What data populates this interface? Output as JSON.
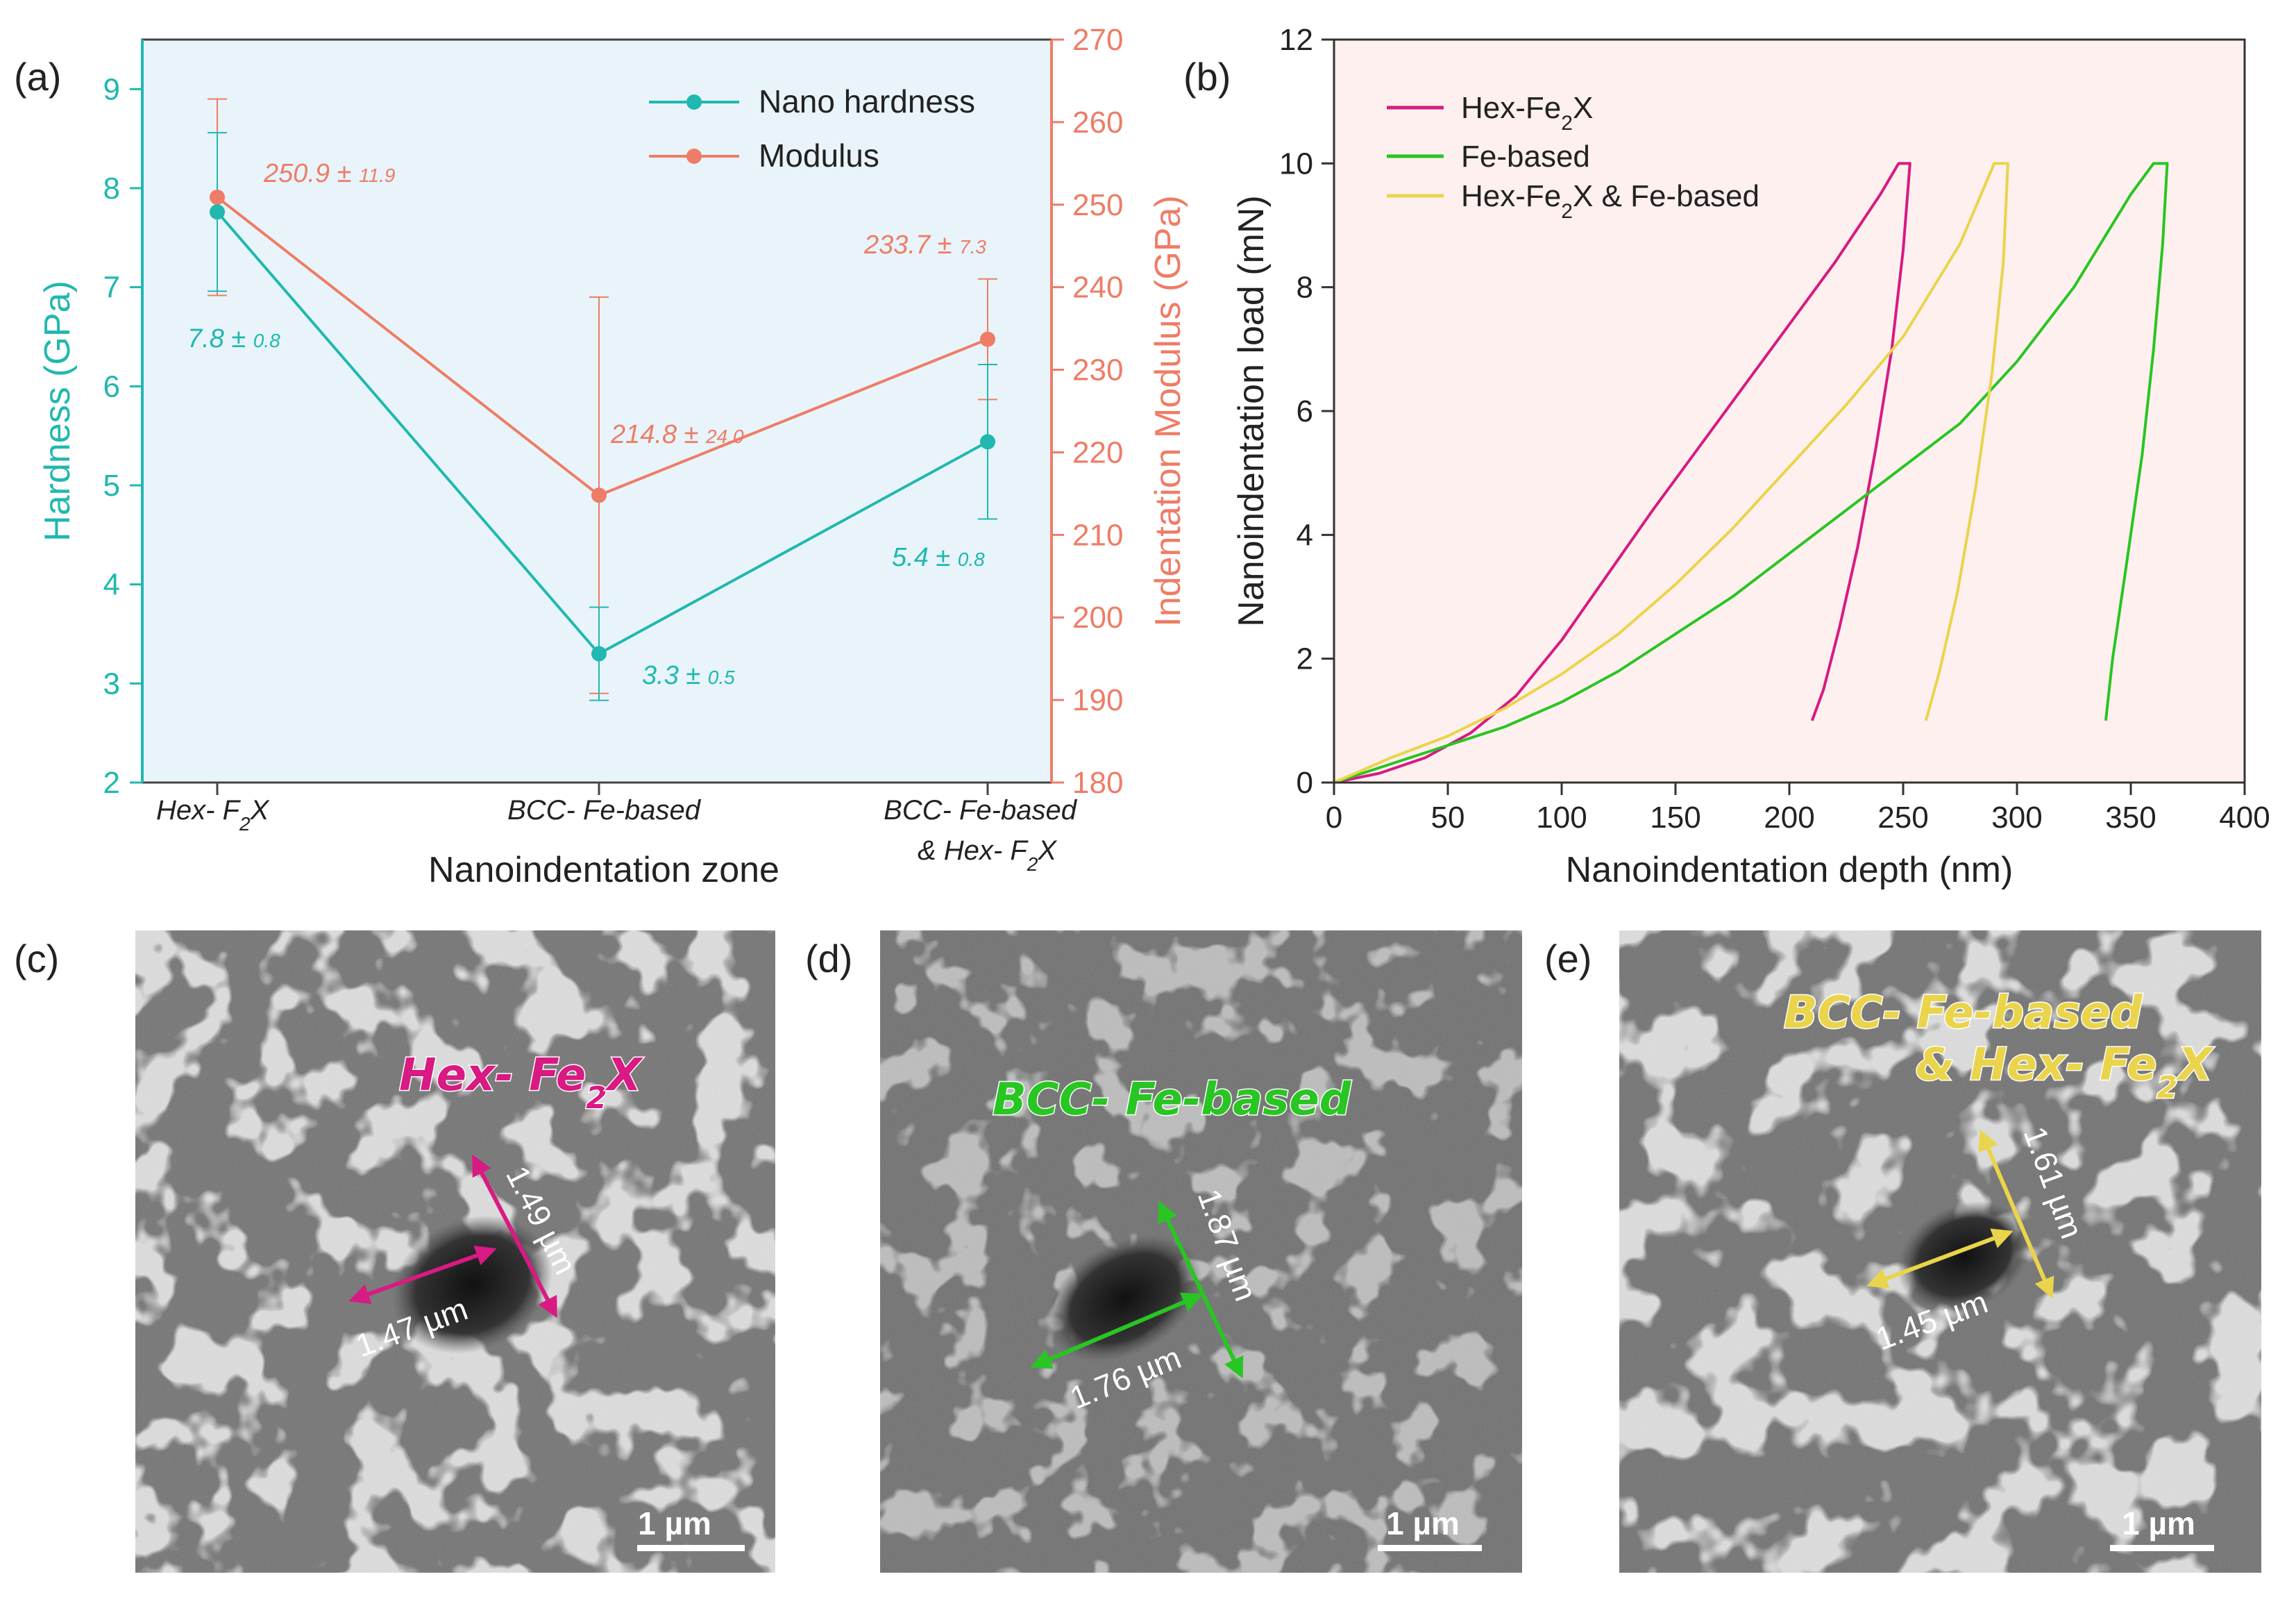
{
  "panels": {
    "a": "(a)",
    "b": "(b)",
    "c": "(c)",
    "d": "(d)",
    "e": "(e)"
  },
  "colors": {
    "hardness": "#20b8b0",
    "modulus": "#ef7c66",
    "hex": "#d81a83",
    "fe": "#29c523",
    "mix": "#ead44b",
    "bgA": "#e8f4fa",
    "bgB": "#fdf0ee"
  },
  "chart_data": [
    {
      "type": "line",
      "panel": "a",
      "categories": [
        "Hex- F2X",
        "BCC- Fe-based",
        "BCC- Fe-based & Hex- F2X"
      ],
      "category_labels": [
        {
          "line1_pre": "Hex- F",
          "line1_sub": "2",
          "line1_post": "X"
        },
        {
          "line1_pre": "BCC- Fe-based",
          "line1_sub": "",
          "line1_post": ""
        },
        {
          "line1_pre": "BCC- Fe-based",
          "line2_pre": "& Hex- F",
          "line2_sub": "2",
          "line2_post": "X"
        }
      ],
      "series": [
        {
          "name": "Nano hardness",
          "axis": "left",
          "values": [
            7.76,
            3.3,
            5.44
          ],
          "errors": [
            0.8,
            0.47,
            0.78
          ],
          "labels": [
            {
              "main": "7.8 ± ",
              "err": "0.8"
            },
            {
              "main": "3.3 ± ",
              "err": "0.5"
            },
            {
              "main": "5.4 ± ",
              "err": "0.8"
            }
          ]
        },
        {
          "name": "Modulus",
          "axis": "right",
          "values": [
            250.9,
            214.8,
            233.7
          ],
          "errors": [
            11.9,
            24.0,
            7.3
          ],
          "labels": [
            {
              "main": "250.9 ± ",
              "err": "11.9"
            },
            {
              "main": "214.8 ± ",
              "err": "24.0"
            },
            {
              "main": "233.7 ± ",
              "err": "7.3"
            }
          ]
        }
      ],
      "xlabel": "Nanoindentation zone",
      "ylabel": "Hardness (GPa)",
      "ylabel_right": "Indentation Modulus (GPa)",
      "ylim": [
        2,
        9.5
      ],
      "ylim_right": [
        180,
        270
      ],
      "yticks": [
        2,
        3,
        4,
        5,
        6,
        7,
        8,
        9
      ],
      "yticks_right": [
        180,
        190,
        200,
        210,
        220,
        230,
        240,
        250,
        260,
        270
      ],
      "legend": "top-right"
    },
    {
      "type": "line",
      "panel": "b",
      "xlabel": "Nanoindentation depth (nm)",
      "ylabel": "Nanoindentation load (mN)",
      "xlim": [
        0,
        400
      ],
      "ylim": [
        0,
        12
      ],
      "xticks": [
        0,
        50,
        100,
        150,
        200,
        250,
        300,
        350,
        400
      ],
      "yticks": [
        0,
        2,
        4,
        6,
        8,
        10,
        12
      ],
      "legend": "top-left",
      "series": [
        {
          "name": "Hex-Fe2X",
          "legend": {
            "pre": "Hex-Fe",
            "sub": "2",
            "post": "X"
          },
          "color_key": "hex",
          "x": [
            0,
            20,
            40,
            60,
            80,
            100,
            120,
            140,
            160,
            180,
            200,
            220,
            240,
            248,
            253,
            250,
            245,
            238,
            230,
            222,
            215,
            210
          ],
          "y": [
            0,
            0.15,
            0.4,
            0.8,
            1.4,
            2.3,
            3.35,
            4.4,
            5.4,
            6.4,
            7.4,
            8.4,
            9.5,
            10,
            10,
            8.6,
            7,
            5.4,
            3.8,
            2.5,
            1.5,
            1
          ]
        },
        {
          "name": "Fe-based",
          "legend": {
            "pre": "Fe-based",
            "sub": "",
            "post": ""
          },
          "color_key": "fe",
          "x": [
            0,
            25,
            50,
            75,
            100,
            125,
            150,
            175,
            200,
            225,
            250,
            275,
            300,
            325,
            350,
            360,
            366,
            364,
            360,
            355,
            348,
            342,
            339
          ],
          "y": [
            0,
            0.3,
            0.6,
            0.9,
            1.3,
            1.8,
            2.4,
            3.0,
            3.7,
            4.4,
            5.1,
            5.8,
            6.8,
            8.0,
            9.5,
            10,
            10,
            8.7,
            7,
            5.3,
            3.5,
            2,
            1
          ]
        },
        {
          "name": "Hex-Fe2X & Fe-based",
          "legend": {
            "pre": "Hex-Fe",
            "sub": "2",
            "post": "X & Fe-based"
          },
          "color_key": "mix",
          "x": [
            0,
            25,
            50,
            75,
            100,
            125,
            150,
            175,
            200,
            225,
            250,
            275,
            290,
            296,
            294,
            289,
            282,
            274,
            266,
            260
          ],
          "y": [
            0,
            0.4,
            0.75,
            1.2,
            1.75,
            2.4,
            3.2,
            4.1,
            5.1,
            6.1,
            7.2,
            8.7,
            10,
            10,
            8.4,
            6.6,
            4.8,
            3.1,
            1.8,
            1
          ]
        }
      ]
    }
  ],
  "sem": {
    "c": {
      "title_pre": "Hex- Fe",
      "title_sub": "2",
      "title_post": "X",
      "m1": "1.49 µm",
      "m2": "1.47 µm",
      "scale": "1 µm",
      "color_key": "hex"
    },
    "d": {
      "title_pre": "BCC- Fe-based",
      "m1": "1.87 µm",
      "m2": "1.76 µm",
      "scale": "1 µm",
      "color_key": "fe"
    },
    "e": {
      "title_line1": "BCC- Fe-based",
      "title_pre": "& Hex- Fe",
      "title_sub": "2",
      "title_post": "X",
      "m1": "1.61 µm",
      "m2": "1.45 µm",
      "scale": "1 µm",
      "color_key": "mix"
    }
  }
}
